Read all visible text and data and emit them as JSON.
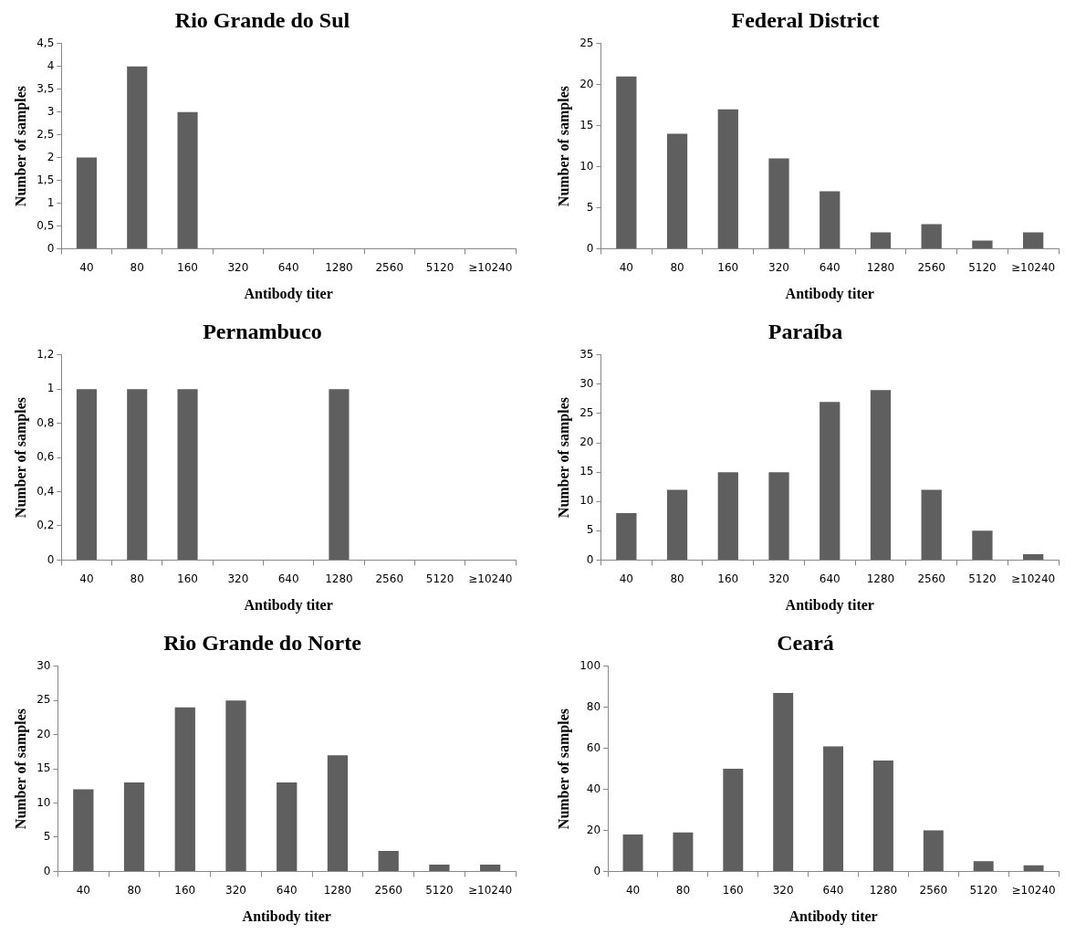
{
  "chart_data": [
    {
      "type": "bar",
      "title": "Rio Grande do Sul",
      "xlabel": "Antibody titer",
      "ylabel": "Number of samples",
      "categories": [
        "40",
        "80",
        "160",
        "320",
        "640",
        "1280",
        "2560",
        "5120",
        "≥10240"
      ],
      "values": [
        2,
        4,
        3,
        0,
        0,
        0,
        0,
        0,
        0
      ],
      "color": "#5f5f5f",
      "ylim": [
        0,
        4.5
      ],
      "yticks": [
        0,
        {
          "value": 0.5,
          "label": "0,5"
        },
        1,
        {
          "value": 1.5,
          "label": "1,5"
        },
        2,
        {
          "value": 2.5,
          "label": "2,5"
        },
        3,
        {
          "value": 3.5,
          "label": "3,5"
        },
        4,
        {
          "value": 4.5,
          "label": "4,5"
        }
      ]
    },
    {
      "type": "bar",
      "title": "Federal District",
      "xlabel": "Antibody titer",
      "ylabel": "Number of samples",
      "categories": [
        "40",
        "80",
        "160",
        "320",
        "640",
        "1280",
        "2560",
        "5120",
        "≥10240"
      ],
      "values": [
        21,
        14,
        17,
        11,
        7,
        2,
        3,
        1,
        2
      ],
      "color": "#5f5f5f",
      "ylim": [
        0,
        25
      ],
      "yticks": [
        0,
        5,
        10,
        15,
        20,
        25
      ]
    },
    {
      "type": "bar",
      "title": "Pernambuco",
      "xlabel": "Antibody titer",
      "ylabel": "Number of samples",
      "categories": [
        "40",
        "80",
        "160",
        "320",
        "640",
        "1280",
        "2560",
        "5120",
        "≥10240"
      ],
      "values": [
        1,
        1,
        1,
        0,
        0,
        1,
        0,
        0,
        0
      ],
      "color": "#5f5f5f",
      "ylim": [
        0,
        1.2
      ],
      "yticks": [
        0,
        {
          "value": 0.2,
          "label": "0,2"
        },
        {
          "value": 0.4,
          "label": "0,4"
        },
        {
          "value": 0.6,
          "label": "0,6"
        },
        {
          "value": 0.8,
          "label": "0,8"
        },
        1,
        {
          "value": 1.2,
          "label": "1,2"
        }
      ]
    },
    {
      "type": "bar",
      "title": "Paraíba",
      "xlabel": "Antibody titer",
      "ylabel": "Number of samples",
      "categories": [
        "40",
        "80",
        "160",
        "320",
        "640",
        "1280",
        "2560",
        "5120",
        "≥10240"
      ],
      "values": [
        8,
        12,
        15,
        15,
        27,
        29,
        12,
        5,
        1
      ],
      "color": "#5f5f5f",
      "ylim": [
        0,
        35
      ],
      "yticks": [
        0,
        5,
        10,
        15,
        20,
        25,
        30,
        35
      ]
    },
    {
      "type": "bar",
      "title": "Rio Grande do Norte",
      "xlabel": "Antibody titer",
      "ylabel": "Number of samples",
      "categories": [
        "40",
        "80",
        "160",
        "320",
        "640",
        "1280",
        "2560",
        "5120",
        "≥10240"
      ],
      "values": [
        12,
        13,
        24,
        25,
        13,
        17,
        3,
        1,
        1
      ],
      "color": "#5f5f5f",
      "ylim": [
        0,
        30
      ],
      "yticks": [
        0,
        5,
        10,
        15,
        20,
        25,
        30
      ]
    },
    {
      "type": "bar",
      "title": "Ceará",
      "xlabel": "Antibody titer",
      "ylabel": "Number of samples",
      "categories": [
        "40",
        "80",
        "160",
        "320",
        "640",
        "1280",
        "2560",
        "5120",
        "≥10240"
      ],
      "values": [
        18,
        19,
        50,
        87,
        61,
        54,
        20,
        5,
        3
      ],
      "color": "#5f5f5f",
      "ylim": [
        0,
        100
      ],
      "yticks": [
        0,
        20,
        40,
        60,
        80,
        100
      ]
    }
  ]
}
